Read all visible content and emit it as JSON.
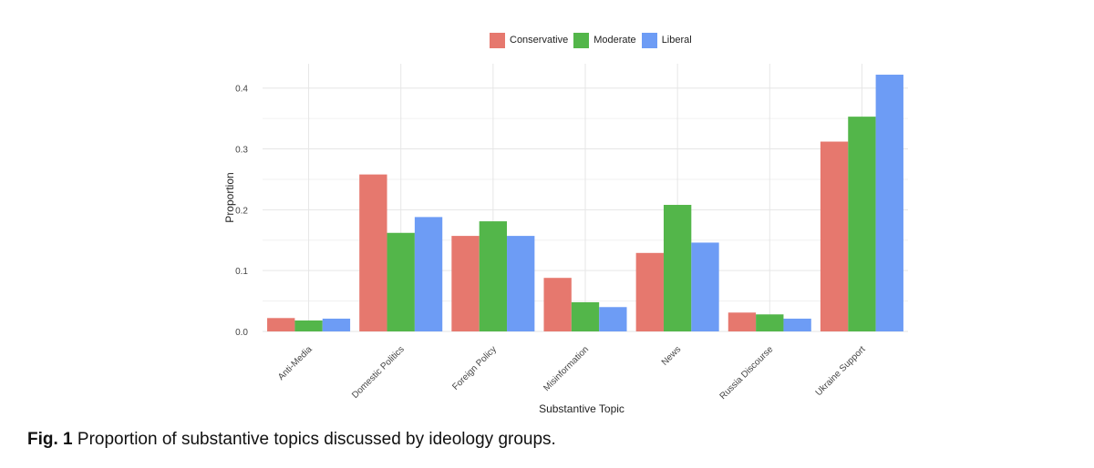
{
  "chart_data": {
    "type": "bar",
    "title": "",
    "xlabel": "Substantive Topic",
    "ylabel": "Proportion",
    "ylim": [
      0,
      0.44
    ],
    "yticks": [
      0.0,
      0.1,
      0.2,
      0.3,
      0.4
    ],
    "ytick_labels": [
      "0.0",
      "0.1",
      "0.2",
      "0.3",
      "0.4"
    ],
    "categories": [
      "Anti-Media",
      "Domestic Politics",
      "Foreign Policy",
      "Misinformation",
      "News",
      "Russia Discourse",
      "Ukraine Support"
    ],
    "series": [
      {
        "name": "Conservative",
        "color": "#e6786e",
        "values": [
          0.022,
          0.258,
          0.157,
          0.088,
          0.129,
          0.031,
          0.312
        ]
      },
      {
        "name": "Moderate",
        "color": "#53b64a",
        "values": [
          0.018,
          0.162,
          0.181,
          0.048,
          0.208,
          0.028,
          0.353
        ]
      },
      {
        "name": "Liberal",
        "color": "#6d9cf5",
        "values": [
          0.021,
          0.188,
          0.157,
          0.04,
          0.146,
          0.021,
          0.422
        ]
      }
    ],
    "grid": true,
    "legend_position": "top"
  },
  "caption": {
    "label": "Fig. 1",
    "text": " Proportion of substantive topics discussed by ideology groups."
  }
}
